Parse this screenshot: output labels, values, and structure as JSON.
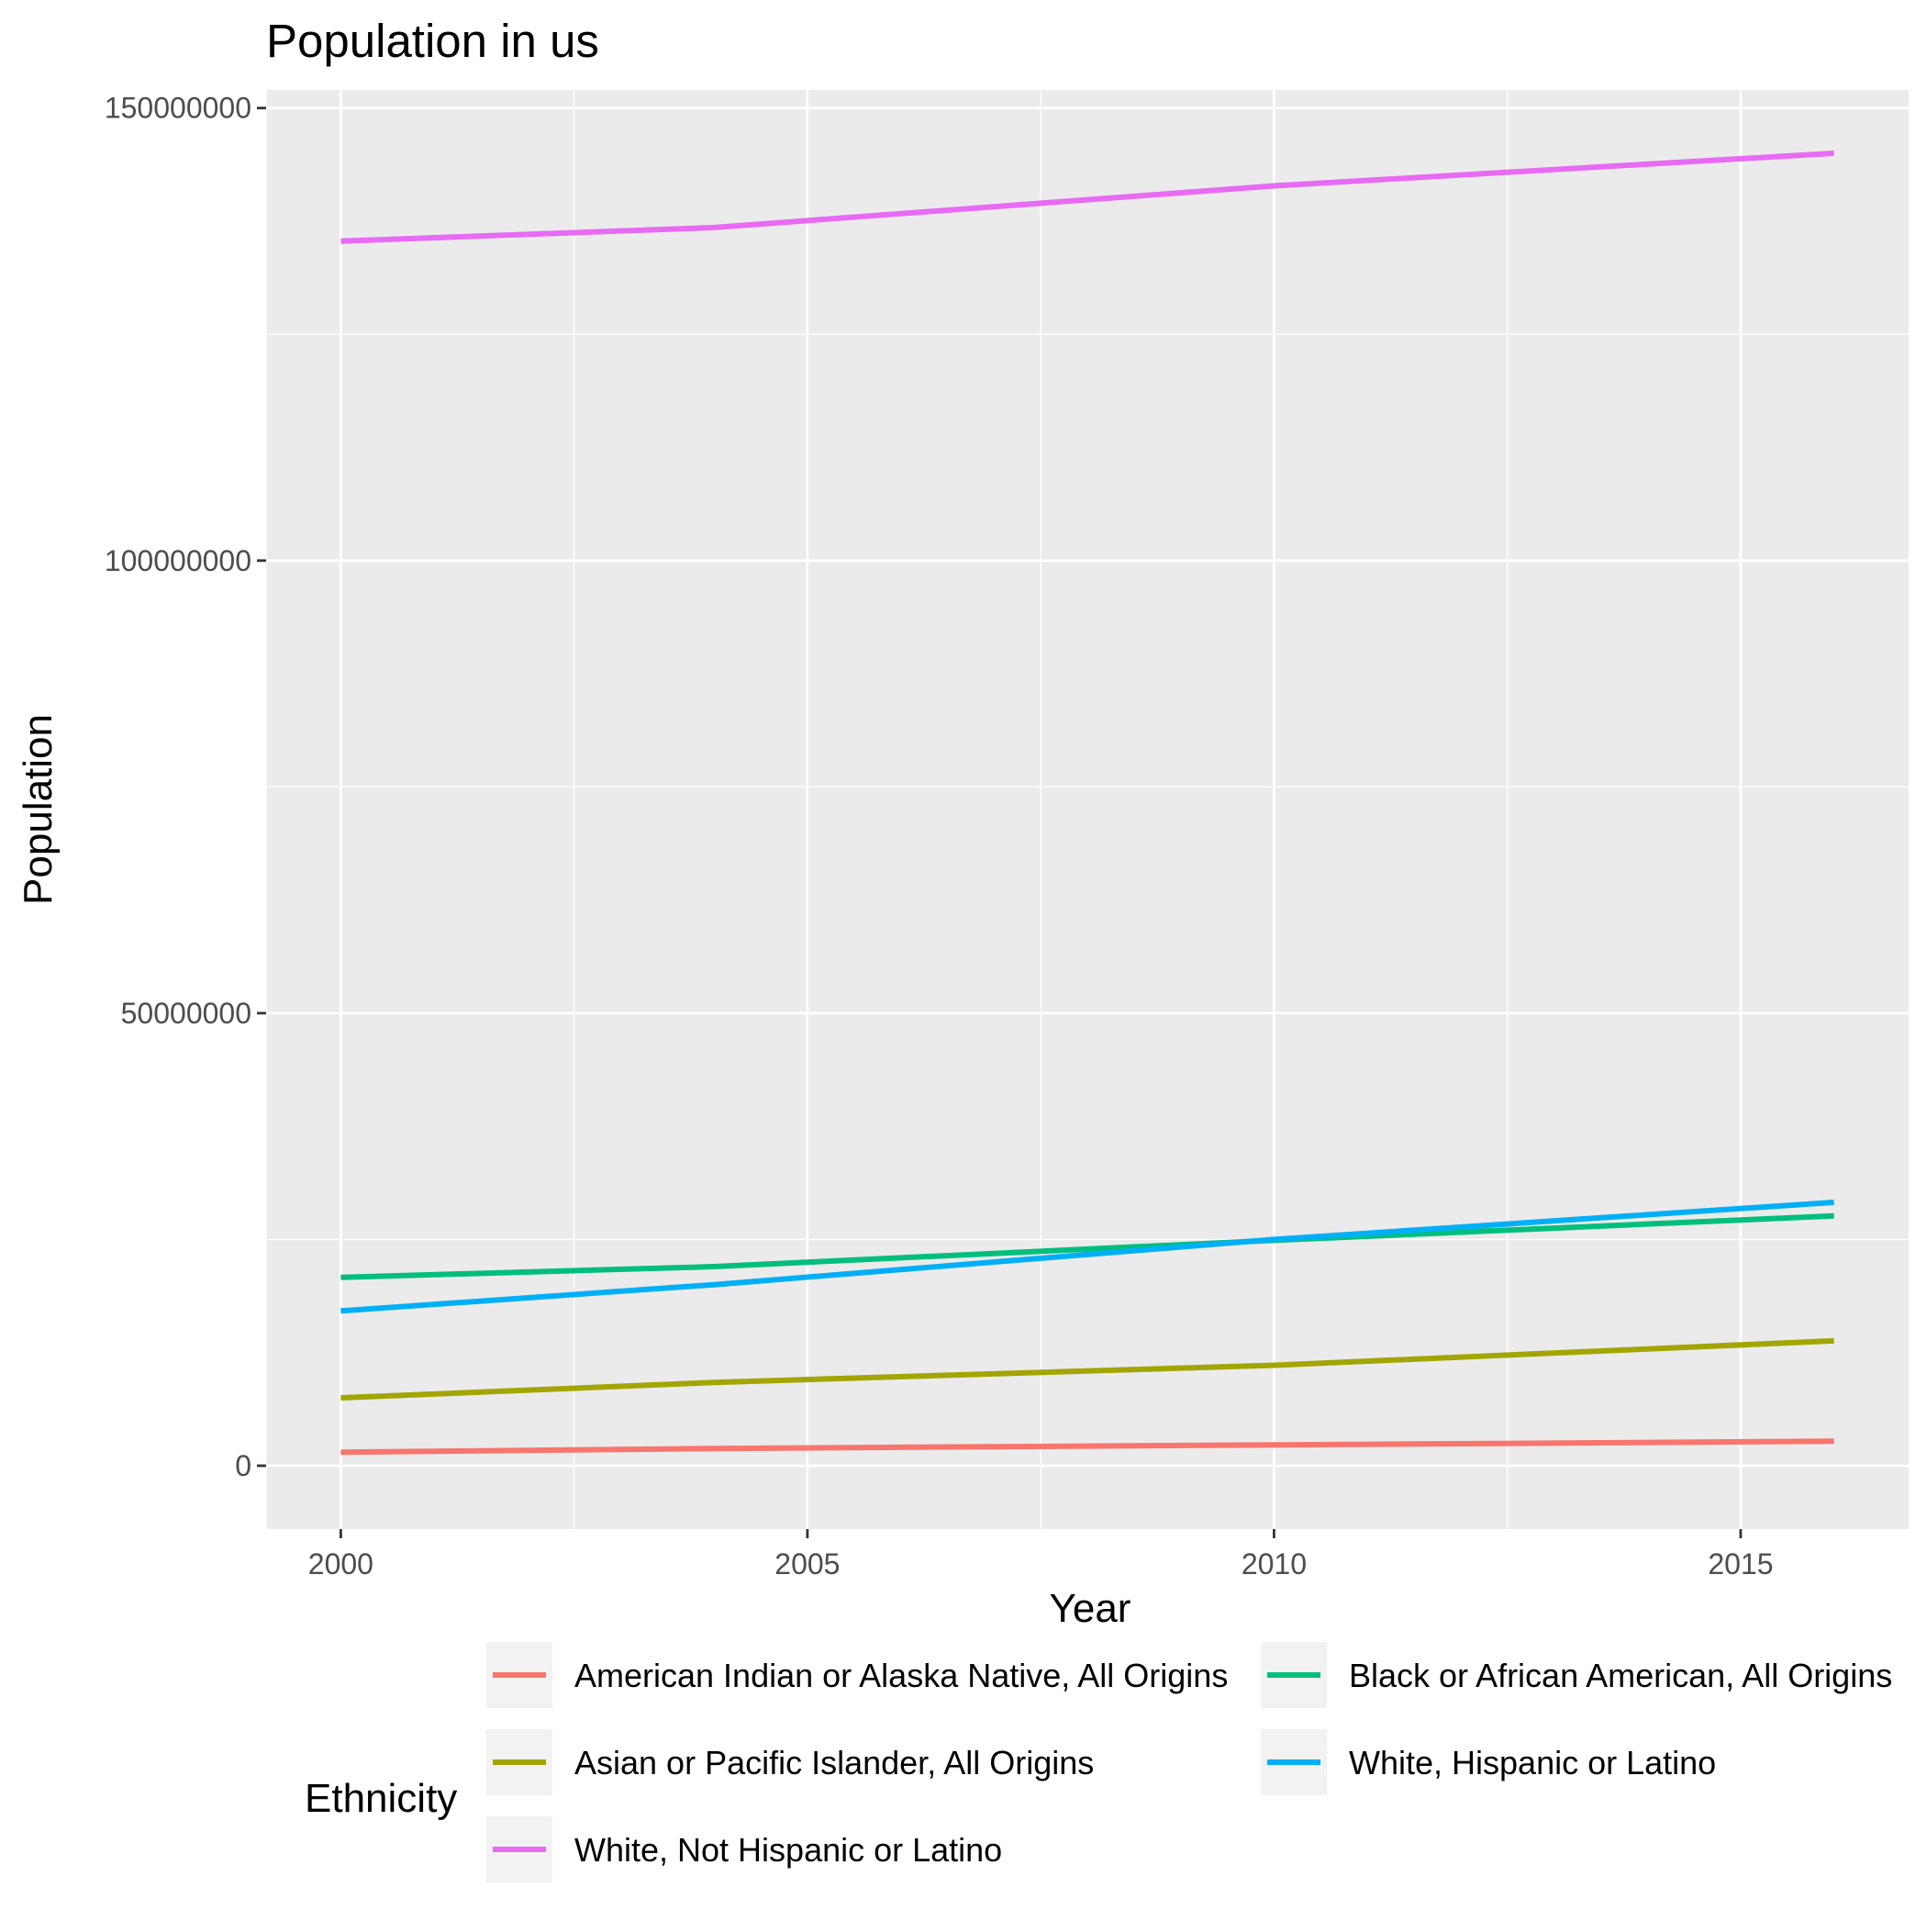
{
  "chart_data": {
    "type": "line",
    "title": "Population in us",
    "xlabel": "Year",
    "ylabel": "Population",
    "xlim": [
      1999.2,
      2016.8
    ],
    "ylim": [
      -7000000,
      152000000
    ],
    "x_ticks": [
      2000,
      2005,
      2010,
      2015
    ],
    "x_tick_labels": [
      "2000",
      "2005",
      "2010",
      "2015"
    ],
    "y_ticks": [
      0,
      50000000,
      100000000,
      150000000
    ],
    "y_tick_labels": [
      "0",
      "50000000",
      "100000000",
      "150000000"
    ],
    "grid": true,
    "legend": {
      "title": "Ethnicity",
      "placement": "bottom"
    },
    "x": [
      2000,
      2004,
      2010,
      2016
    ],
    "series": [
      {
        "name": "American Indian or Alaska Native, All Origins",
        "color": "#F8766D",
        "values": [
          1500000,
          1900000,
          2300000,
          2700000
        ]
      },
      {
        "name": "Asian or Pacific Islander, All Origins",
        "color": "#A3A500",
        "values": [
          7500000,
          9200000,
          11100000,
          13800000
        ]
      },
      {
        "name": "Black or African American, All Origins",
        "color": "#00BF7D",
        "values": [
          20800000,
          22000000,
          24900000,
          27600000
        ]
      },
      {
        "name": "White, Hispanic or Latino",
        "color": "#00B0F6",
        "values": [
          17100000,
          20000000,
          25000000,
          29100000
        ]
      },
      {
        "name": "White, Not Hispanic or Latino",
        "color": "#E76BF3",
        "values": [
          135300000,
          136800000,
          141400000,
          145000000
        ]
      }
    ]
  }
}
